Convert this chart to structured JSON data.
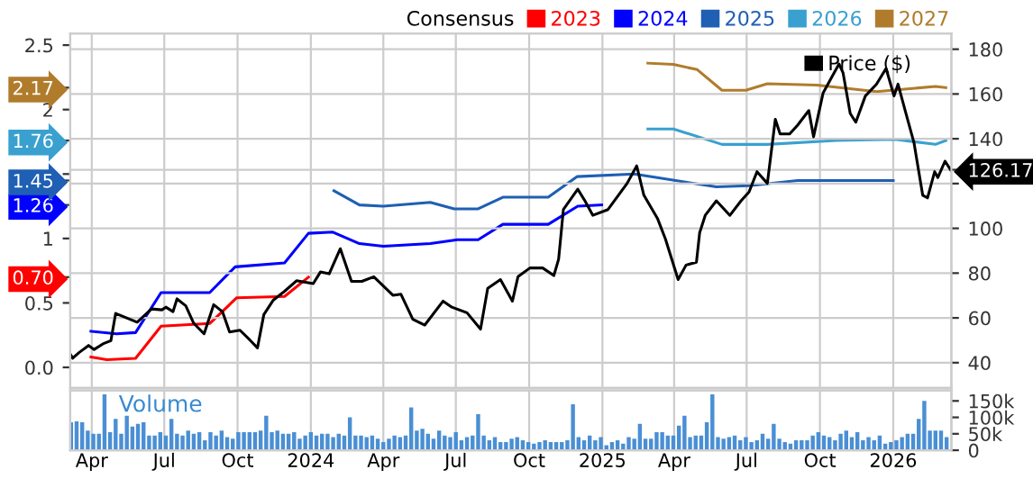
{
  "chart_data": [
    {
      "type": "line",
      "legend": "top",
      "legend_title": "Consensus",
      "grid": true,
      "tick_labels": "y",
      "xlim": [
        "2023-03-05",
        "2026-03-15"
      ],
      "xticks": [
        {
          "value": "2023-04-01",
          "label": null
        },
        {
          "value": "2023-07-01",
          "label": null
        },
        {
          "value": "2023-10-01",
          "label": null
        },
        {
          "value": "2024-01-01",
          "label": null
        },
        {
          "value": "2024-04-01",
          "label": null
        },
        {
          "value": "2024-07-01",
          "label": null
        },
        {
          "value": "2024-10-01",
          "label": null
        },
        {
          "value": "2025-01-01",
          "label": null
        },
        {
          "value": "2025-04-01",
          "label": null
        },
        {
          "value": "2025-07-01",
          "label": null
        },
        {
          "value": "2025-10-01",
          "label": null
        },
        {
          "value": "2026-01-01",
          "label": null
        }
      ],
      "ylim": [
        -0.16,
        2.59
      ],
      "yticks": [
        {
          "value": 0,
          "label": "0.0"
        },
        0.5,
        {
          "value": 0.7,
          "label": "0.70"
        },
        1,
        {
          "value": 1.26,
          "label": "1.26"
        },
        {
          "value": 1.45,
          "label": "1.45"
        },
        {
          "value": 1.5,
          "label": null
        },
        {
          "value": 1.76,
          "label": "1.76"
        },
        2,
        {
          "value": 2.17,
          "label": "2.17"
        },
        2.5
      ],
      "y2lim": [
        28.7,
        187
      ],
      "y2ticks": [
        40,
        60,
        80,
        100,
        {
          "value": 120,
          "label": null
        },
        126.17,
        140,
        160,
        180
      ],
      "series": [
        {
          "name": "2023",
          "color": "#ff0000",
          "x": [
            "2023-03-31",
            "2023-04-20",
            "2023-05-26",
            "2023-06-27",
            "2023-08-27",
            "2023-09-30",
            "2023-11-29",
            "2023-12-29"
          ],
          "values": [
            0.08,
            0.06,
            0.07,
            0.32,
            0.34,
            0.54,
            0.55,
            0.7
          ]
        },
        {
          "name": "2024",
          "color": "#0000ff",
          "x": [
            "2023-03-31",
            "2023-05-02",
            "2023-05-26",
            "2023-06-27",
            "2023-08-27",
            "2023-09-28",
            "2023-11-29",
            "2023-12-29",
            "2024-01-28",
            "2024-03-02",
            "2024-04-01",
            "2024-05-30",
            "2024-07-03",
            "2024-07-29",
            "2024-08-29",
            "2024-10-25",
            "2024-12-01",
            "2024-12-31"
          ],
          "values": [
            0.28,
            0.26,
            0.27,
            0.58,
            0.58,
            0.78,
            0.81,
            1.04,
            1.05,
            0.96,
            0.94,
            0.96,
            0.99,
            0.99,
            1.11,
            1.11,
            1.25,
            1.26
          ]
        },
        {
          "name": "2025",
          "color": "#1f5fb4",
          "x": [
            "2024-01-30",
            "2024-03-02",
            "2024-04-01",
            "2024-05-30",
            "2024-06-29",
            "2024-07-29",
            "2024-08-29",
            "2024-10-25",
            "2024-11-30",
            "2025-02-10",
            "2025-05-24",
            "2025-07-04",
            "2025-09-03",
            "2026-01-01"
          ],
          "values": [
            1.37,
            1.26,
            1.25,
            1.28,
            1.23,
            1.23,
            1.32,
            1.32,
            1.48,
            1.5,
            1.4,
            1.41,
            1.45,
            1.45
          ]
        },
        {
          "name": "2026",
          "color": "#3aa0d0",
          "x": [
            "2025-02-27",
            "2025-03-31",
            "2025-05-31",
            "2025-07-27",
            "2025-10-22",
            "2026-01-03",
            "2026-02-23",
            "2026-03-08"
          ],
          "values": [
            1.85,
            1.85,
            1.73,
            1.73,
            1.76,
            1.77,
            1.73,
            1.76
          ]
        },
        {
          "name": "2027",
          "color": "#b07c2c",
          "x": [
            "2025-02-27",
            "2025-03-31",
            "2025-04-30",
            "2025-05-31",
            "2025-06-30",
            "2025-07-27",
            "2025-09-27",
            "2025-12-11",
            "2026-02-23",
            "2026-03-08"
          ],
          "values": [
            2.36,
            2.35,
            2.31,
            2.15,
            2.15,
            2.2,
            2.19,
            2.14,
            2.18,
            2.17
          ]
        },
        {
          "name": "Price ($)",
          "color": "#000000",
          "axis": "y2",
          "x": [
            "2023-03-06",
            "2023-03-08",
            "2023-03-16",
            "2023-03-28",
            "2023-04-04",
            "2023-04-15",
            "2023-04-25",
            "2023-05-01",
            "2023-05-28",
            "2023-06-15",
            "2023-06-28",
            "2023-07-03",
            "2023-07-12",
            "2023-07-17",
            "2023-07-28",
            "2023-08-07",
            "2023-08-20",
            "2023-09-01",
            "2023-09-12",
            "2023-09-21",
            "2023-10-04",
            "2023-10-16",
            "2023-10-26",
            "2023-11-03",
            "2023-11-15",
            "2023-11-29",
            "2023-12-14",
            "2024-01-04",
            "2024-01-13",
            "2024-01-24",
            "2024-02-07",
            "2024-02-21",
            "2024-03-05",
            "2024-03-20",
            "2024-04-13",
            "2024-04-23",
            "2024-05-08",
            "2024-05-23",
            "2024-06-15",
            "2024-06-26",
            "2024-07-15",
            "2024-08-01",
            "2024-08-10",
            "2024-08-26",
            "2024-09-10",
            "2024-09-17",
            "2024-10-02",
            "2024-10-18",
            "2024-11-01",
            "2024-11-07",
            "2024-11-13",
            "2024-12-01",
            "2024-12-10",
            "2024-12-20",
            "2025-01-08",
            "2025-02-01",
            "2025-02-13",
            "2025-02-22",
            "2025-03-11",
            "2025-03-21",
            "2025-04-06",
            "2025-04-16",
            "2025-04-29",
            "2025-05-03",
            "2025-05-10",
            "2025-05-24",
            "2025-06-10",
            "2025-06-24",
            "2025-07-04",
            "2025-07-14",
            "2025-07-27",
            "2025-08-06",
            "2025-08-12",
            "2025-08-24",
            "2025-09-03",
            "2025-09-17",
            "2025-09-23",
            "2025-10-05",
            "2025-10-15",
            "2025-10-25",
            "2025-10-30",
            "2025-11-08",
            "2025-11-15",
            "2025-11-27",
            "2025-12-11",
            "2025-12-23",
            "2026-01-02",
            "2026-01-07",
            "2026-01-16",
            "2026-01-27",
            "2026-02-07",
            "2026-02-13",
            "2026-02-22",
            "2026-02-26",
            "2026-03-07",
            "2026-03-14"
          ],
          "values": [
            43.3,
            42,
            44.5,
            47.7,
            45.9,
            48.4,
            49.8,
            62,
            58.1,
            64,
            63.6,
            64.8,
            62.8,
            68.5,
            65.4,
            57.6,
            52.9,
            65.9,
            62.8,
            53.7,
            54.5,
            50.3,
            46.6,
            61.5,
            68,
            71.9,
            76.6,
            75.3,
            80.5,
            79.7,
            90.9,
            76.3,
            76.3,
            78.4,
            70.1,
            70.6,
            59.4,
            56.8,
            67.5,
            64.8,
            62.3,
            55,
            73.2,
            77.1,
            67.5,
            78.4,
            82.3,
            82.3,
            78.9,
            86.2,
            108.4,
            117.5,
            112.3,
            105.8,
            108.4,
            120.1,
            127.9,
            114.8,
            104.5,
            95.3,
            77.1,
            83.6,
            84.9,
            98,
            105.8,
            112.3,
            105.8,
            112.3,
            116.2,
            125.3,
            120.1,
            148.7,
            142.2,
            142.2,
            146.1,
            152.6,
            140.9,
            160.5,
            167,
            173.4,
            169.5,
            151.3,
            147.4,
            159.1,
            164.4,
            171.4,
            159.1,
            164.4,
            152.6,
            138.3,
            114.8,
            113.6,
            125.3,
            122.7,
            130,
            126.17
          ]
        }
      ]
    },
    {
      "type": "bar",
      "grid": "x",
      "annotations": [
        "Volume"
      ],
      "xlim": [
        "2023-03-05",
        "2026-03-15"
      ],
      "xticks": [
        {
          "value": "2023-04-01",
          "label": "Apr"
        },
        {
          "value": "2023-07-01",
          "label": "Jul"
        },
        {
          "value": "2023-10-01",
          "label": "Oct"
        },
        {
          "value": "2024-01-01",
          "label": "2024"
        },
        {
          "value": "2024-04-01",
          "label": "Apr"
        },
        {
          "value": "2024-07-01",
          "label": "Jul"
        },
        {
          "value": "2024-10-01",
          "label": "Oct"
        },
        {
          "value": "2025-01-01",
          "label": "2025"
        },
        {
          "value": "2025-04-01",
          "label": "Apr"
        },
        {
          "value": "2025-07-01",
          "label": "Jul"
        },
        {
          "value": "2025-10-01",
          "label": "Oct"
        },
        {
          "value": "2026-01-01",
          "label": "2026"
        }
      ],
      "y2lim": [
        0,
        182000
      ],
      "y2ticks": [
        0,
        {
          "value": 50000,
          "label": "50k"
        },
        {
          "value": 100000,
          "label": "100k"
        },
        {
          "value": 150000,
          "label": "150k"
        }
      ],
      "series": [
        {
          "axis": "y2",
          "color": "#4a8fd4",
          "x": [
            "2023-03-06",
            "2023-03-13",
            "2023-03-20",
            "2023-03-27",
            "2023-04-03",
            "2023-04-10",
            "2023-04-17",
            "2023-04-24",
            "2023-05-01",
            "2023-05-08",
            "2023-05-15",
            "2023-05-22",
            "2023-05-29",
            "2023-06-05",
            "2023-06-12",
            "2023-06-19",
            "2023-06-26",
            "2023-07-03",
            "2023-07-10",
            "2023-07-17",
            "2023-07-24",
            "2023-07-31",
            "2023-08-07",
            "2023-08-14",
            "2023-08-21",
            "2023-08-28",
            "2023-09-04",
            "2023-09-11",
            "2023-09-18",
            "2023-09-25",
            "2023-10-02",
            "2023-10-09",
            "2023-10-16",
            "2023-10-23",
            "2023-10-30",
            "2023-11-06",
            "2023-11-13",
            "2023-11-20",
            "2023-11-27",
            "2023-12-04",
            "2023-12-11",
            "2023-12-18",
            "2023-12-25",
            "2024-01-01",
            "2024-01-08",
            "2024-01-15",
            "2024-01-22",
            "2024-01-29",
            "2024-02-05",
            "2024-02-12",
            "2024-02-19",
            "2024-02-26",
            "2024-03-04",
            "2024-03-11",
            "2024-03-18",
            "2024-03-25",
            "2024-04-01",
            "2024-04-08",
            "2024-04-15",
            "2024-04-22",
            "2024-04-29",
            "2024-05-06",
            "2024-05-13",
            "2024-05-20",
            "2024-05-27",
            "2024-06-03",
            "2024-06-10",
            "2024-06-17",
            "2024-06-24",
            "2024-07-01",
            "2024-07-08",
            "2024-07-15",
            "2024-07-22",
            "2024-07-29",
            "2024-08-05",
            "2024-08-12",
            "2024-08-19",
            "2024-08-26",
            "2024-09-02",
            "2024-09-09",
            "2024-09-16",
            "2024-09-23",
            "2024-09-30",
            "2024-10-07",
            "2024-10-14",
            "2024-10-21",
            "2024-10-28",
            "2024-11-04",
            "2024-11-11",
            "2024-11-18",
            "2024-11-25",
            "2024-12-02",
            "2024-12-09",
            "2024-12-16",
            "2024-12-23",
            "2024-12-30",
            "2025-01-06",
            "2025-01-13",
            "2025-01-20",
            "2025-01-27",
            "2025-02-03",
            "2025-02-10",
            "2025-02-17",
            "2025-02-24",
            "2025-03-03",
            "2025-03-10",
            "2025-03-17",
            "2025-03-24",
            "2025-03-31",
            "2025-04-07",
            "2025-04-14",
            "2025-04-21",
            "2025-04-28",
            "2025-05-05",
            "2025-05-12",
            "2025-05-19",
            "2025-05-26",
            "2025-06-02",
            "2025-06-09",
            "2025-06-16",
            "2025-06-23",
            "2025-06-30",
            "2025-07-07",
            "2025-07-14",
            "2025-07-21",
            "2025-07-28",
            "2025-08-04",
            "2025-08-11",
            "2025-08-18",
            "2025-08-25",
            "2025-09-01",
            "2025-09-08",
            "2025-09-15",
            "2025-09-22",
            "2025-09-29",
            "2025-10-06",
            "2025-10-13",
            "2025-10-20",
            "2025-10-27",
            "2025-11-03",
            "2025-11-10",
            "2025-11-17",
            "2025-11-24",
            "2025-12-01",
            "2025-12-08",
            "2025-12-15",
            "2025-12-22",
            "2025-12-29",
            "2026-01-05",
            "2026-01-12",
            "2026-01-19",
            "2026-01-26",
            "2026-02-02",
            "2026-02-09",
            "2026-02-16",
            "2026-02-23",
            "2026-03-02",
            "2026-03-09"
          ],
          "values": [
            85000,
            88000,
            85000,
            60000,
            50000,
            50000,
            170000,
            55000,
            95000,
            50000,
            105000,
            72000,
            80000,
            85000,
            45000,
            45000,
            55000,
            45000,
            95000,
            50000,
            45000,
            60000,
            50000,
            55000,
            30000,
            55000,
            45000,
            60000,
            40000,
            35000,
            55000,
            55000,
            55000,
            55000,
            60000,
            105000,
            55000,
            60000,
            50000,
            50000,
            55000,
            35000,
            45000,
            55000,
            45000,
            50000,
            50000,
            40000,
            50000,
            45000,
            100000,
            45000,
            45000,
            40000,
            45000,
            35000,
            25000,
            35000,
            45000,
            40000,
            45000,
            130000,
            60000,
            65000,
            50000,
            35000,
            60000,
            45000,
            40000,
            55000,
            30000,
            40000,
            45000,
            110000,
            45000,
            30000,
            40000,
            25000,
            25000,
            35000,
            40000,
            30000,
            25000,
            20000,
            25000,
            30000,
            25000,
            25000,
            25000,
            30000,
            140000,
            40000,
            30000,
            45000,
            30000,
            40000,
            15000,
            25000,
            30000,
            20000,
            40000,
            35000,
            80000,
            35000,
            35000,
            55000,
            55000,
            45000,
            45000,
            75000,
            105000,
            40000,
            45000,
            45000,
            85000,
            170000,
            40000,
            35000,
            40000,
            45000,
            30000,
            40000,
            25000,
            30000,
            50000,
            35000,
            80000,
            35000,
            25000,
            20000,
            30000,
            30000,
            30000,
            45000,
            55000,
            45000,
            40000,
            30000,
            50000,
            60000,
            40000,
            55000,
            30000,
            40000,
            30000,
            45000,
            20000,
            25000,
            30000,
            40000,
            50000,
            50000,
            95000,
            150000,
            60000,
            60000,
            60000,
            40000
          ]
        }
      ]
    }
  ]
}
